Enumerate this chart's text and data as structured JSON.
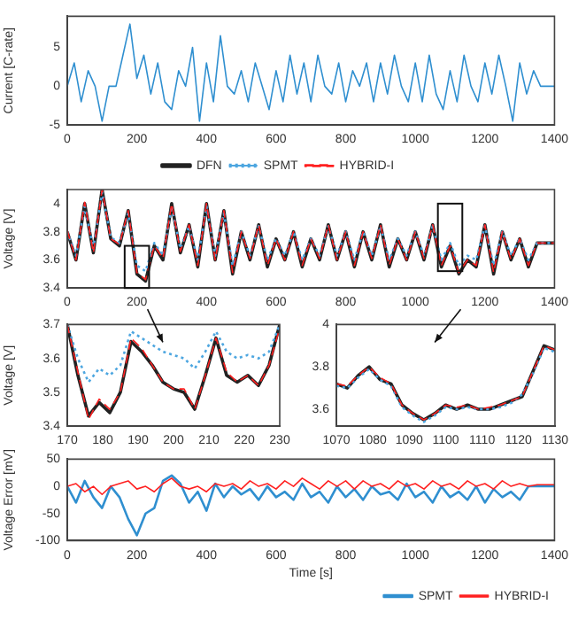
{
  "chart_data": [
    {
      "type": "line",
      "ylabel": "Current [C-rate]",
      "marker": "none",
      "x": [
        0,
        20,
        40,
        60,
        80,
        100,
        120,
        140,
        160,
        180,
        200,
        220,
        240,
        260,
        280,
        300,
        320,
        340,
        360,
        380,
        400,
        420,
        440,
        460,
        480,
        500,
        520,
        540,
        560,
        580,
        600,
        620,
        640,
        660,
        680,
        700,
        720,
        740,
        760,
        780,
        800,
        820,
        840,
        860,
        880,
        900,
        920,
        940,
        960,
        980,
        1000,
        1020,
        1040,
        1060,
        1080,
        1100,
        1120,
        1140,
        1160,
        1180,
        1200,
        1220,
        1240,
        1260,
        1280,
        1300,
        1320,
        1340,
        1360,
        1380,
        1400
      ],
      "xlim": [
        0,
        1400
      ],
      "xticks": [
        0,
        200,
        400,
        600,
        800,
        1000,
        1200,
        1400
      ],
      "ylim": [
        -5,
        9
      ],
      "yticks": [
        -5,
        0,
        5
      ],
      "series": [
        {
          "color": "#2f8fd0",
          "values": [
            0,
            3,
            -2,
            2,
            0,
            -4.5,
            0,
            0,
            4,
            8,
            1,
            4,
            -1,
            3,
            -2,
            -3,
            2,
            0,
            5,
            -4.5,
            3,
            -2,
            6.5,
            0,
            -1,
            2,
            -2,
            3,
            0,
            -3,
            2,
            -2,
            4,
            -1,
            3,
            -2,
            4,
            0,
            -1,
            3,
            -2,
            2,
            0,
            3,
            -2,
            3,
            -1,
            4,
            0,
            -2,
            3,
            -2,
            4,
            -1,
            -3,
            2,
            -2,
            4,
            0,
            -2,
            3,
            -1,
            4,
            0,
            -4.5,
            3,
            -1,
            2,
            0,
            0,
            0
          ]
        }
      ]
    },
    {
      "type": "line",
      "ylabel": "Voltage [V]",
      "marker": "none",
      "legend": "top",
      "x": [
        0,
        25,
        50,
        75,
        100,
        125,
        150,
        175,
        200,
        225,
        250,
        275,
        300,
        325,
        350,
        375,
        400,
        425,
        450,
        475,
        500,
        525,
        550,
        575,
        600,
        625,
        650,
        675,
        700,
        725,
        750,
        775,
        800,
        825,
        850,
        875,
        900,
        925,
        950,
        975,
        1000,
        1025,
        1050,
        1075,
        1100,
        1125,
        1150,
        1175,
        1200,
        1225,
        1250,
        1275,
        1300,
        1325,
        1350,
        1375,
        1400
      ],
      "xlim": [
        0,
        1400
      ],
      "xticks": [
        0,
        200,
        400,
        600,
        800,
        1000,
        1200,
        1400
      ],
      "ylim": [
        3.4,
        4.1
      ],
      "yticks": [
        3.4,
        3.6,
        3.8,
        4
      ],
      "series": [
        {
          "name": "DFN",
          "color": "#222222",
          "line_style": "solid",
          "values": [
            3.8,
            3.6,
            4.0,
            3.65,
            4.1,
            3.75,
            3.7,
            3.95,
            3.5,
            3.45,
            3.7,
            3.6,
            4.0,
            3.65,
            3.85,
            3.55,
            4.0,
            3.6,
            3.95,
            3.5,
            3.8,
            3.6,
            3.85,
            3.55,
            3.75,
            3.6,
            3.8,
            3.55,
            3.75,
            3.6,
            3.85,
            3.6,
            3.8,
            3.55,
            3.8,
            3.6,
            3.85,
            3.55,
            3.75,
            3.6,
            3.8,
            3.6,
            3.85,
            3.55,
            3.7,
            3.5,
            3.6,
            3.55,
            3.85,
            3.5,
            3.8,
            3.6,
            3.75,
            3.55,
            3.72,
            3.72,
            3.72
          ]
        },
        {
          "name": "SPMT",
          "color": "#4da6e0",
          "line_style": "dotted",
          "values": [
            3.8,
            3.63,
            3.98,
            3.68,
            4.08,
            3.76,
            3.72,
            3.93,
            3.56,
            3.52,
            3.72,
            3.63,
            3.98,
            3.68,
            3.84,
            3.6,
            3.98,
            3.63,
            3.93,
            3.56,
            3.8,
            3.63,
            3.84,
            3.6,
            3.75,
            3.63,
            3.8,
            3.6,
            3.75,
            3.63,
            3.84,
            3.63,
            3.8,
            3.6,
            3.8,
            3.63,
            3.84,
            3.6,
            3.75,
            3.63,
            3.8,
            3.63,
            3.84,
            3.6,
            3.72,
            3.56,
            3.63,
            3.6,
            3.84,
            3.56,
            3.8,
            3.63,
            3.75,
            3.6,
            3.72,
            3.72,
            3.72
          ]
        },
        {
          "name": "HYBRID-I",
          "color": "#ff2020",
          "line_style": "dashed",
          "values": [
            3.81,
            3.6,
            4.01,
            3.65,
            4.1,
            3.75,
            3.71,
            3.95,
            3.51,
            3.46,
            3.7,
            3.61,
            4.0,
            3.66,
            3.85,
            3.56,
            4.0,
            3.6,
            3.95,
            3.51,
            3.8,
            3.61,
            3.85,
            3.56,
            3.75,
            3.6,
            3.8,
            3.56,
            3.75,
            3.61,
            3.85,
            3.6,
            3.8,
            3.56,
            3.8,
            3.61,
            3.85,
            3.56,
            3.75,
            3.6,
            3.8,
            3.61,
            3.85,
            3.56,
            3.7,
            3.51,
            3.6,
            3.56,
            3.85,
            3.51,
            3.8,
            3.6,
            3.75,
            3.56,
            3.72,
            3.72,
            3.72
          ]
        }
      ]
    },
    {
      "type": "line",
      "ylabel": "Voltage [V]",
      "marker": "none",
      "x": [
        170,
        173,
        176,
        179,
        182,
        185,
        188,
        191,
        194,
        197,
        200,
        203,
        206,
        209,
        212,
        215,
        218,
        221,
        224,
        227,
        230
      ],
      "xlim": [
        170,
        230
      ],
      "xticks": [
        170,
        180,
        190,
        200,
        210,
        220,
        230
      ],
      "ylim": [
        3.4,
        3.7
      ],
      "yticks": [
        3.4,
        3.5,
        3.6,
        3.7
      ],
      "series": [
        {
          "color": "#222222",
          "line_style": "solid",
          "values": [
            3.7,
            3.55,
            3.43,
            3.47,
            3.44,
            3.5,
            3.65,
            3.62,
            3.58,
            3.53,
            3.51,
            3.5,
            3.45,
            3.55,
            3.66,
            3.55,
            3.53,
            3.55,
            3.52,
            3.58,
            3.7
          ]
        },
        {
          "color": "#4da6e0",
          "line_style": "dotted",
          "values": [
            3.7,
            3.6,
            3.53,
            3.57,
            3.55,
            3.58,
            3.68,
            3.66,
            3.64,
            3.62,
            3.61,
            3.6,
            3.57,
            3.62,
            3.68,
            3.62,
            3.6,
            3.61,
            3.6,
            3.62,
            3.7
          ]
        },
        {
          "color": "#ff2020",
          "line_style": "dashed",
          "values": [
            3.7,
            3.56,
            3.42,
            3.48,
            3.45,
            3.5,
            3.66,
            3.63,
            3.58,
            3.53,
            3.51,
            3.51,
            3.45,
            3.55,
            3.66,
            3.56,
            3.53,
            3.55,
            3.52,
            3.58,
            3.69
          ]
        }
      ]
    },
    {
      "type": "line",
      "marker": "none",
      "x": [
        1070,
        1073,
        1076,
        1079,
        1082,
        1085,
        1088,
        1091,
        1094,
        1097,
        1100,
        1103,
        1106,
        1109,
        1112,
        1115,
        1118,
        1121,
        1124,
        1127,
        1130
      ],
      "xlim": [
        1070,
        1130
      ],
      "xticks": [
        1070,
        1080,
        1090,
        1100,
        1110,
        1120,
        1130
      ],
      "ylim": [
        3.52,
        4
      ],
      "yticks": [
        3.6,
        3.8,
        4
      ],
      "series": [
        {
          "color": "#222222",
          "line_style": "solid",
          "values": [
            3.72,
            3.7,
            3.76,
            3.8,
            3.74,
            3.72,
            3.62,
            3.58,
            3.55,
            3.58,
            3.62,
            3.6,
            3.62,
            3.6,
            3.6,
            3.62,
            3.64,
            3.66,
            3.78,
            3.9,
            3.88
          ]
        },
        {
          "color": "#4da6e0",
          "line_style": "dotted",
          "values": [
            3.71,
            3.7,
            3.75,
            3.79,
            3.74,
            3.71,
            3.61,
            3.57,
            3.54,
            3.57,
            3.61,
            3.6,
            3.61,
            3.6,
            3.6,
            3.61,
            3.63,
            3.67,
            3.77,
            3.89,
            3.87
          ]
        },
        {
          "color": "#ff2020",
          "line_style": "dashed",
          "values": [
            3.72,
            3.71,
            3.76,
            3.8,
            3.75,
            3.72,
            3.62,
            3.58,
            3.55,
            3.58,
            3.62,
            3.61,
            3.62,
            3.6,
            3.61,
            3.62,
            3.64,
            3.66,
            3.78,
            3.9,
            3.88
          ]
        }
      ]
    },
    {
      "type": "line",
      "xlabel": "Time [s]",
      "ylabel": "Voltage Error [mV]",
      "marker": "none",
      "legend": "bottom right",
      "x": [
        0,
        25,
        50,
        75,
        100,
        125,
        150,
        175,
        200,
        225,
        250,
        275,
        300,
        325,
        350,
        375,
        400,
        425,
        450,
        475,
        500,
        525,
        550,
        575,
        600,
        625,
        650,
        675,
        700,
        725,
        750,
        775,
        800,
        825,
        850,
        875,
        900,
        925,
        950,
        975,
        1000,
        1025,
        1050,
        1075,
        1100,
        1125,
        1150,
        1175,
        1200,
        1225,
        1250,
        1275,
        1300,
        1325,
        1350,
        1375,
        1400
      ],
      "xlim": [
        0,
        1400
      ],
      "xticks": [
        0,
        200,
        400,
        600,
        800,
        1000,
        1200,
        1400
      ],
      "ylim": [
        -100,
        50
      ],
      "yticks": [
        -100,
        -50,
        0,
        50
      ],
      "series": [
        {
          "name": "SPMT",
          "color": "#2f8fd0",
          "line_style": "solid",
          "values": [
            0,
            -30,
            10,
            -20,
            -40,
            0,
            -20,
            -60,
            -90,
            -50,
            -40,
            10,
            20,
            5,
            -30,
            -10,
            -45,
            5,
            -20,
            0,
            -15,
            -5,
            -25,
            0,
            -20,
            -10,
            -25,
            5,
            -20,
            -10,
            -30,
            0,
            -20,
            -5,
            -25,
            0,
            -15,
            -10,
            -25,
            5,
            -20,
            -10,
            -30,
            0,
            -20,
            -10,
            -25,
            0,
            -30,
            -5,
            -20,
            -10,
            -25,
            0,
            0,
            0,
            0
          ]
        },
        {
          "name": "HYBRID-I",
          "color": "#ff2020",
          "line_style": "solid",
          "values": [
            0,
            5,
            -10,
            0,
            -15,
            0,
            5,
            10,
            -5,
            0,
            -10,
            5,
            15,
            0,
            -5,
            0,
            -10,
            5,
            0,
            5,
            -5,
            10,
            0,
            5,
            -5,
            10,
            0,
            15,
            5,
            -5,
            10,
            0,
            10,
            -5,
            10,
            0,
            5,
            -5,
            10,
            0,
            5,
            -5,
            10,
            0,
            5,
            -5,
            10,
            0,
            5,
            -5,
            10,
            0,
            5,
            0,
            3,
            3,
            3
          ]
        }
      ]
    }
  ]
}
